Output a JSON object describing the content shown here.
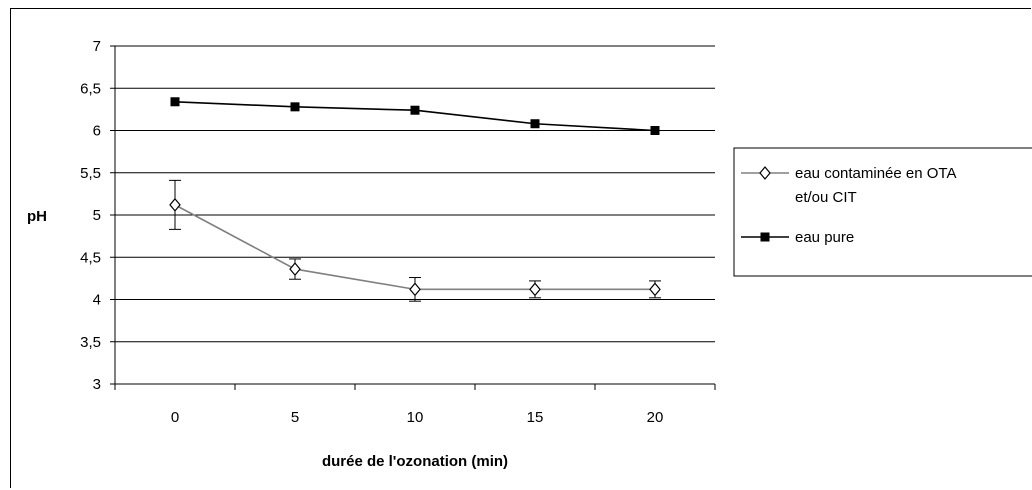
{
  "chart_data": {
    "type": "line",
    "title": "",
    "xlabel": "durée de l'ozonation (min)",
    "ylabel": "pH",
    "categories": [
      "0",
      "5",
      "10",
      "15",
      "20"
    ],
    "ylim": [
      3,
      7
    ],
    "yticks": [
      "3",
      "3,5",
      "4",
      "4,5",
      "5",
      "5,5",
      "6",
      "6,5",
      "7"
    ],
    "grid": true,
    "legend_position": "right",
    "series": [
      {
        "name": "eau contaminée en OTA et/ou CIT",
        "legend_lines": [
          "eau contaminée en OTA",
          "et/ou CIT"
        ],
        "values": [
          5.12,
          4.36,
          4.12,
          4.12,
          4.12
        ],
        "error": [
          0.29,
          0.12,
          0.14,
          0.1,
          0.1
        ],
        "marker": "open-diamond",
        "color": "#808080"
      },
      {
        "name": "eau pure",
        "legend_lines": [
          "eau pure"
        ],
        "values": [
          6.34,
          6.28,
          6.24,
          6.08,
          6.0
        ],
        "marker": "filled-square",
        "color": "#000000"
      }
    ]
  }
}
